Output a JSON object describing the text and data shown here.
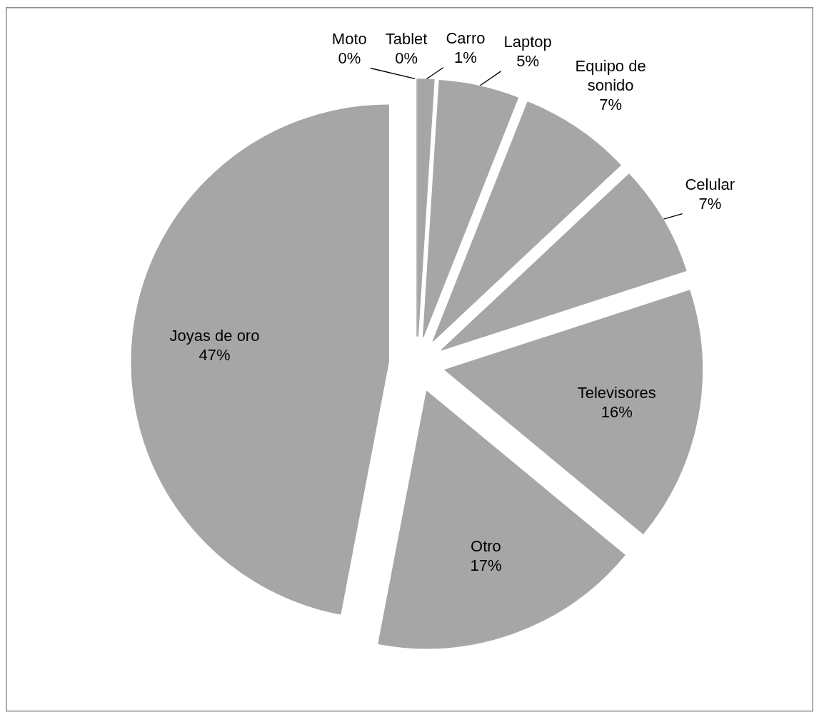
{
  "chart_data": {
    "type": "pie",
    "categories": [
      "Moto",
      "Tablet",
      "Carro",
      "Laptop",
      "Equipo de sonido",
      "Celular",
      "Televisores",
      "Otro",
      "Joyas de oro"
    ],
    "values": [
      0,
      0,
      1,
      5,
      7,
      7,
      16,
      17,
      47
    ],
    "colors": [
      "#c9c9c9",
      "#b9b9b9",
      "#a6a6a6",
      "#a6a6a6",
      "#a6a6a6",
      "#a6a6a6",
      "#a6a6a6",
      "#a6a6a6",
      "#a6a6a6"
    ],
    "value_labels": [
      "0%",
      "0%",
      "1%",
      "5%",
      "7%",
      "7%",
      "16%",
      "17%",
      "47%"
    ]
  }
}
